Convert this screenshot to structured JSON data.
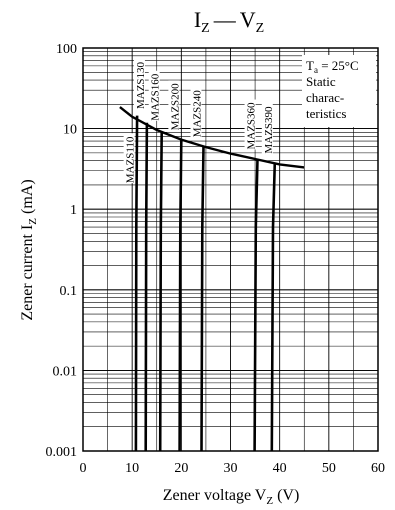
{
  "chart_data": {
    "type": "line",
    "title": {
      "main_a": "I",
      "sub_a": "Z",
      "dash": "—",
      "main_b": "V",
      "sub_b": "Z"
    },
    "xlabel": {
      "text": "Zener voltage  V",
      "sub": "Z",
      "unit": "  (V)"
    },
    "ylabel": {
      "text": "Zener current  I",
      "sub": "Z",
      "unit": "  (mA)"
    },
    "xlim": [
      0,
      60
    ],
    "ylim": [
      0.001,
      100
    ],
    "yscale": "log",
    "grid": true,
    "x_ticks": [
      "0",
      "10",
      "20",
      "30",
      "40",
      "50",
      "60"
    ],
    "y_ticks": [
      "0.001",
      "0.01",
      "0.1",
      "1",
      "10",
      "100"
    ],
    "annotation": {
      "t_main": "T",
      "t_sub": "a",
      "t_value": " = 25°C",
      "line2": "Static",
      "line3": "charac-",
      "line4": "teristics"
    },
    "series": [
      {
        "name": "MAZS110",
        "vz": 11.0,
        "top_ma": 14.5,
        "bend": 0.25
      },
      {
        "name": "MAZS130",
        "vz": 13.0,
        "top_ma": 11.8,
        "bend": 0.25
      },
      {
        "name": "MAZS160",
        "vz": 16.0,
        "top_ma": 9.0,
        "bend": 0.3
      },
      {
        "name": "MAZS200",
        "vz": 20.0,
        "top_ma": 7.2,
        "bend": 0.35
      },
      {
        "name": "MAZS240",
        "vz": 24.5,
        "top_ma": 6.0,
        "bend": 0.4
      },
      {
        "name": "MAZS360",
        "vz": 35.5,
        "top_ma": 4.2,
        "bend": 0.6
      },
      {
        "name": "MAZS390",
        "vz": 39.0,
        "top_ma": 3.8,
        "bend": 0.6
      }
    ],
    "power_limit": {
      "x": [
        7.5,
        10,
        15,
        20,
        25,
        30,
        35,
        40,
        45
      ],
      "y": [
        18.5,
        14.0,
        9.6,
        7.3,
        5.9,
        4.9,
        4.2,
        3.6,
        3.3
      ]
    }
  }
}
